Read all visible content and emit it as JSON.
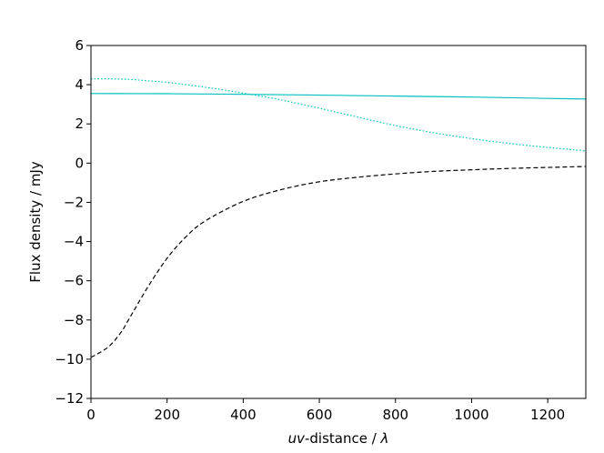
{
  "chart_data": {
    "type": "line",
    "xlabel": "uv-distance / λ",
    "xlabel_parts": {
      "italic": "uv",
      "mid": "-distance / ",
      "symbol": "λ"
    },
    "ylabel": "Flux density / mJy",
    "xlim": [
      0,
      1300
    ],
    "ylim": [
      -12,
      6
    ],
    "xticks": [
      0,
      200,
      400,
      600,
      800,
      1000,
      1200
    ],
    "yticks": [
      -12,
      -10,
      -8,
      -6,
      -4,
      -2,
      0,
      2,
      4,
      6
    ],
    "xtick_labels": [
      "0",
      "200",
      "400",
      "600",
      "800",
      "1000",
      "1200"
    ],
    "ytick_labels": [
      "−12",
      "−10",
      "−8",
      "−6",
      "−4",
      "−2",
      "0",
      "2",
      "4",
      "6"
    ],
    "grid": false,
    "series": [
      {
        "color": "#00bfbf",
        "style": "solid",
        "x": [
          0,
          200,
          400,
          600,
          800,
          1000,
          1200,
          1300
        ],
        "y": [
          3.55,
          3.54,
          3.51,
          3.47,
          3.42,
          3.37,
          3.3,
          3.27
        ]
      },
      {
        "color": "#00bfbf",
        "style": "dotted",
        "x": [
          0,
          50,
          100,
          150,
          200,
          250,
          300,
          350,
          400,
          450,
          500,
          600,
          700,
          800,
          900,
          1000,
          1100,
          1200,
          1300
        ],
        "y": [
          4.3,
          4.3,
          4.27,
          4.2,
          4.12,
          4.0,
          3.87,
          3.73,
          3.57,
          3.4,
          3.22,
          2.8,
          2.35,
          1.92,
          1.55,
          1.25,
          1.0,
          0.8,
          0.63
        ]
      },
      {
        "color": "#000000",
        "style": "dashed",
        "x": [
          0,
          20,
          50,
          80,
          100,
          150,
          200,
          250,
          300,
          400,
          500,
          600,
          700,
          800,
          900,
          1000,
          1100,
          1200,
          1300
        ],
        "y": [
          -9.9,
          -9.7,
          -9.3,
          -8.6,
          -7.95,
          -6.3,
          -4.85,
          -3.75,
          -2.95,
          -1.95,
          -1.35,
          -0.95,
          -0.72,
          -0.55,
          -0.42,
          -0.34,
          -0.27,
          -0.22,
          -0.17
        ]
      }
    ]
  }
}
